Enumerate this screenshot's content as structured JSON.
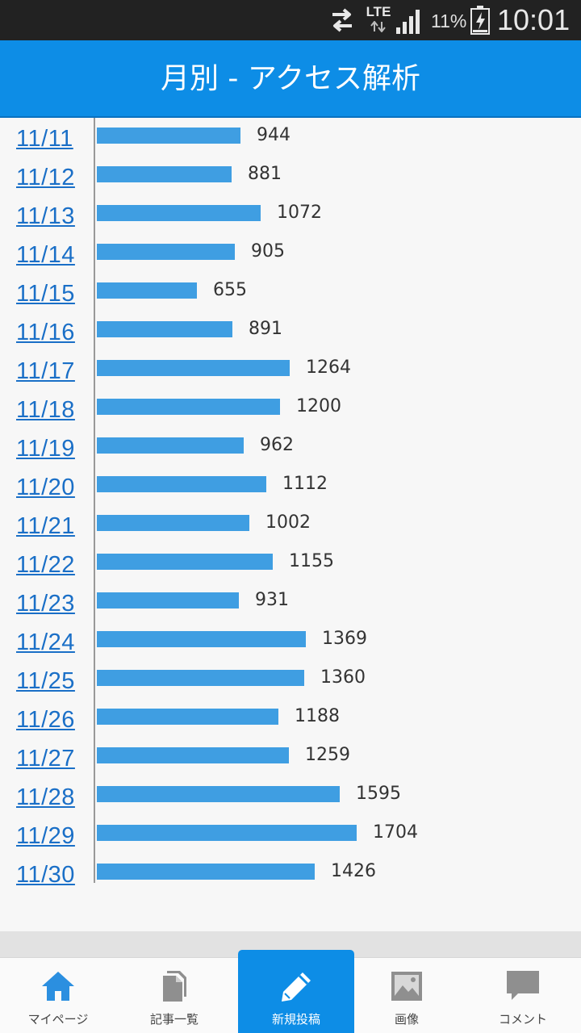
{
  "status_bar": {
    "network": "LTE",
    "battery_percent": "11%",
    "time": "10:01"
  },
  "header": {
    "title": "月別 - アクセス解析"
  },
  "colors": {
    "accent": "#0d8de6",
    "bar": "#3f9ee2",
    "link": "#1a6fc7",
    "status_bar": "#222222"
  },
  "chart_data": {
    "type": "bar",
    "orientation": "horizontal",
    "categories": [
      "11/11",
      "11/12",
      "11/13",
      "11/14",
      "11/15",
      "11/16",
      "11/17",
      "11/18",
      "11/19",
      "11/20",
      "11/21",
      "11/22",
      "11/23",
      "11/24",
      "11/25",
      "11/26",
      "11/27",
      "11/28",
      "11/29",
      "11/30"
    ],
    "values": [
      944,
      881,
      1072,
      905,
      655,
      891,
      1264,
      1200,
      962,
      1112,
      1002,
      1155,
      931,
      1369,
      1360,
      1188,
      1259,
      1595,
      1704,
      1426
    ],
    "title": "",
    "xlabel": "",
    "ylabel": "",
    "grid": false,
    "data_labels": true
  },
  "bottom_nav": {
    "items": [
      {
        "label": "マイページ",
        "icon": "home-icon",
        "active": false
      },
      {
        "label": "記事一覧",
        "icon": "documents-icon",
        "active": false
      },
      {
        "label": "新規投稿",
        "icon": "pencil-icon",
        "active": true
      },
      {
        "label": "画像",
        "icon": "image-icon",
        "active": false
      },
      {
        "label": "コメント",
        "icon": "comment-icon",
        "active": false
      }
    ]
  }
}
